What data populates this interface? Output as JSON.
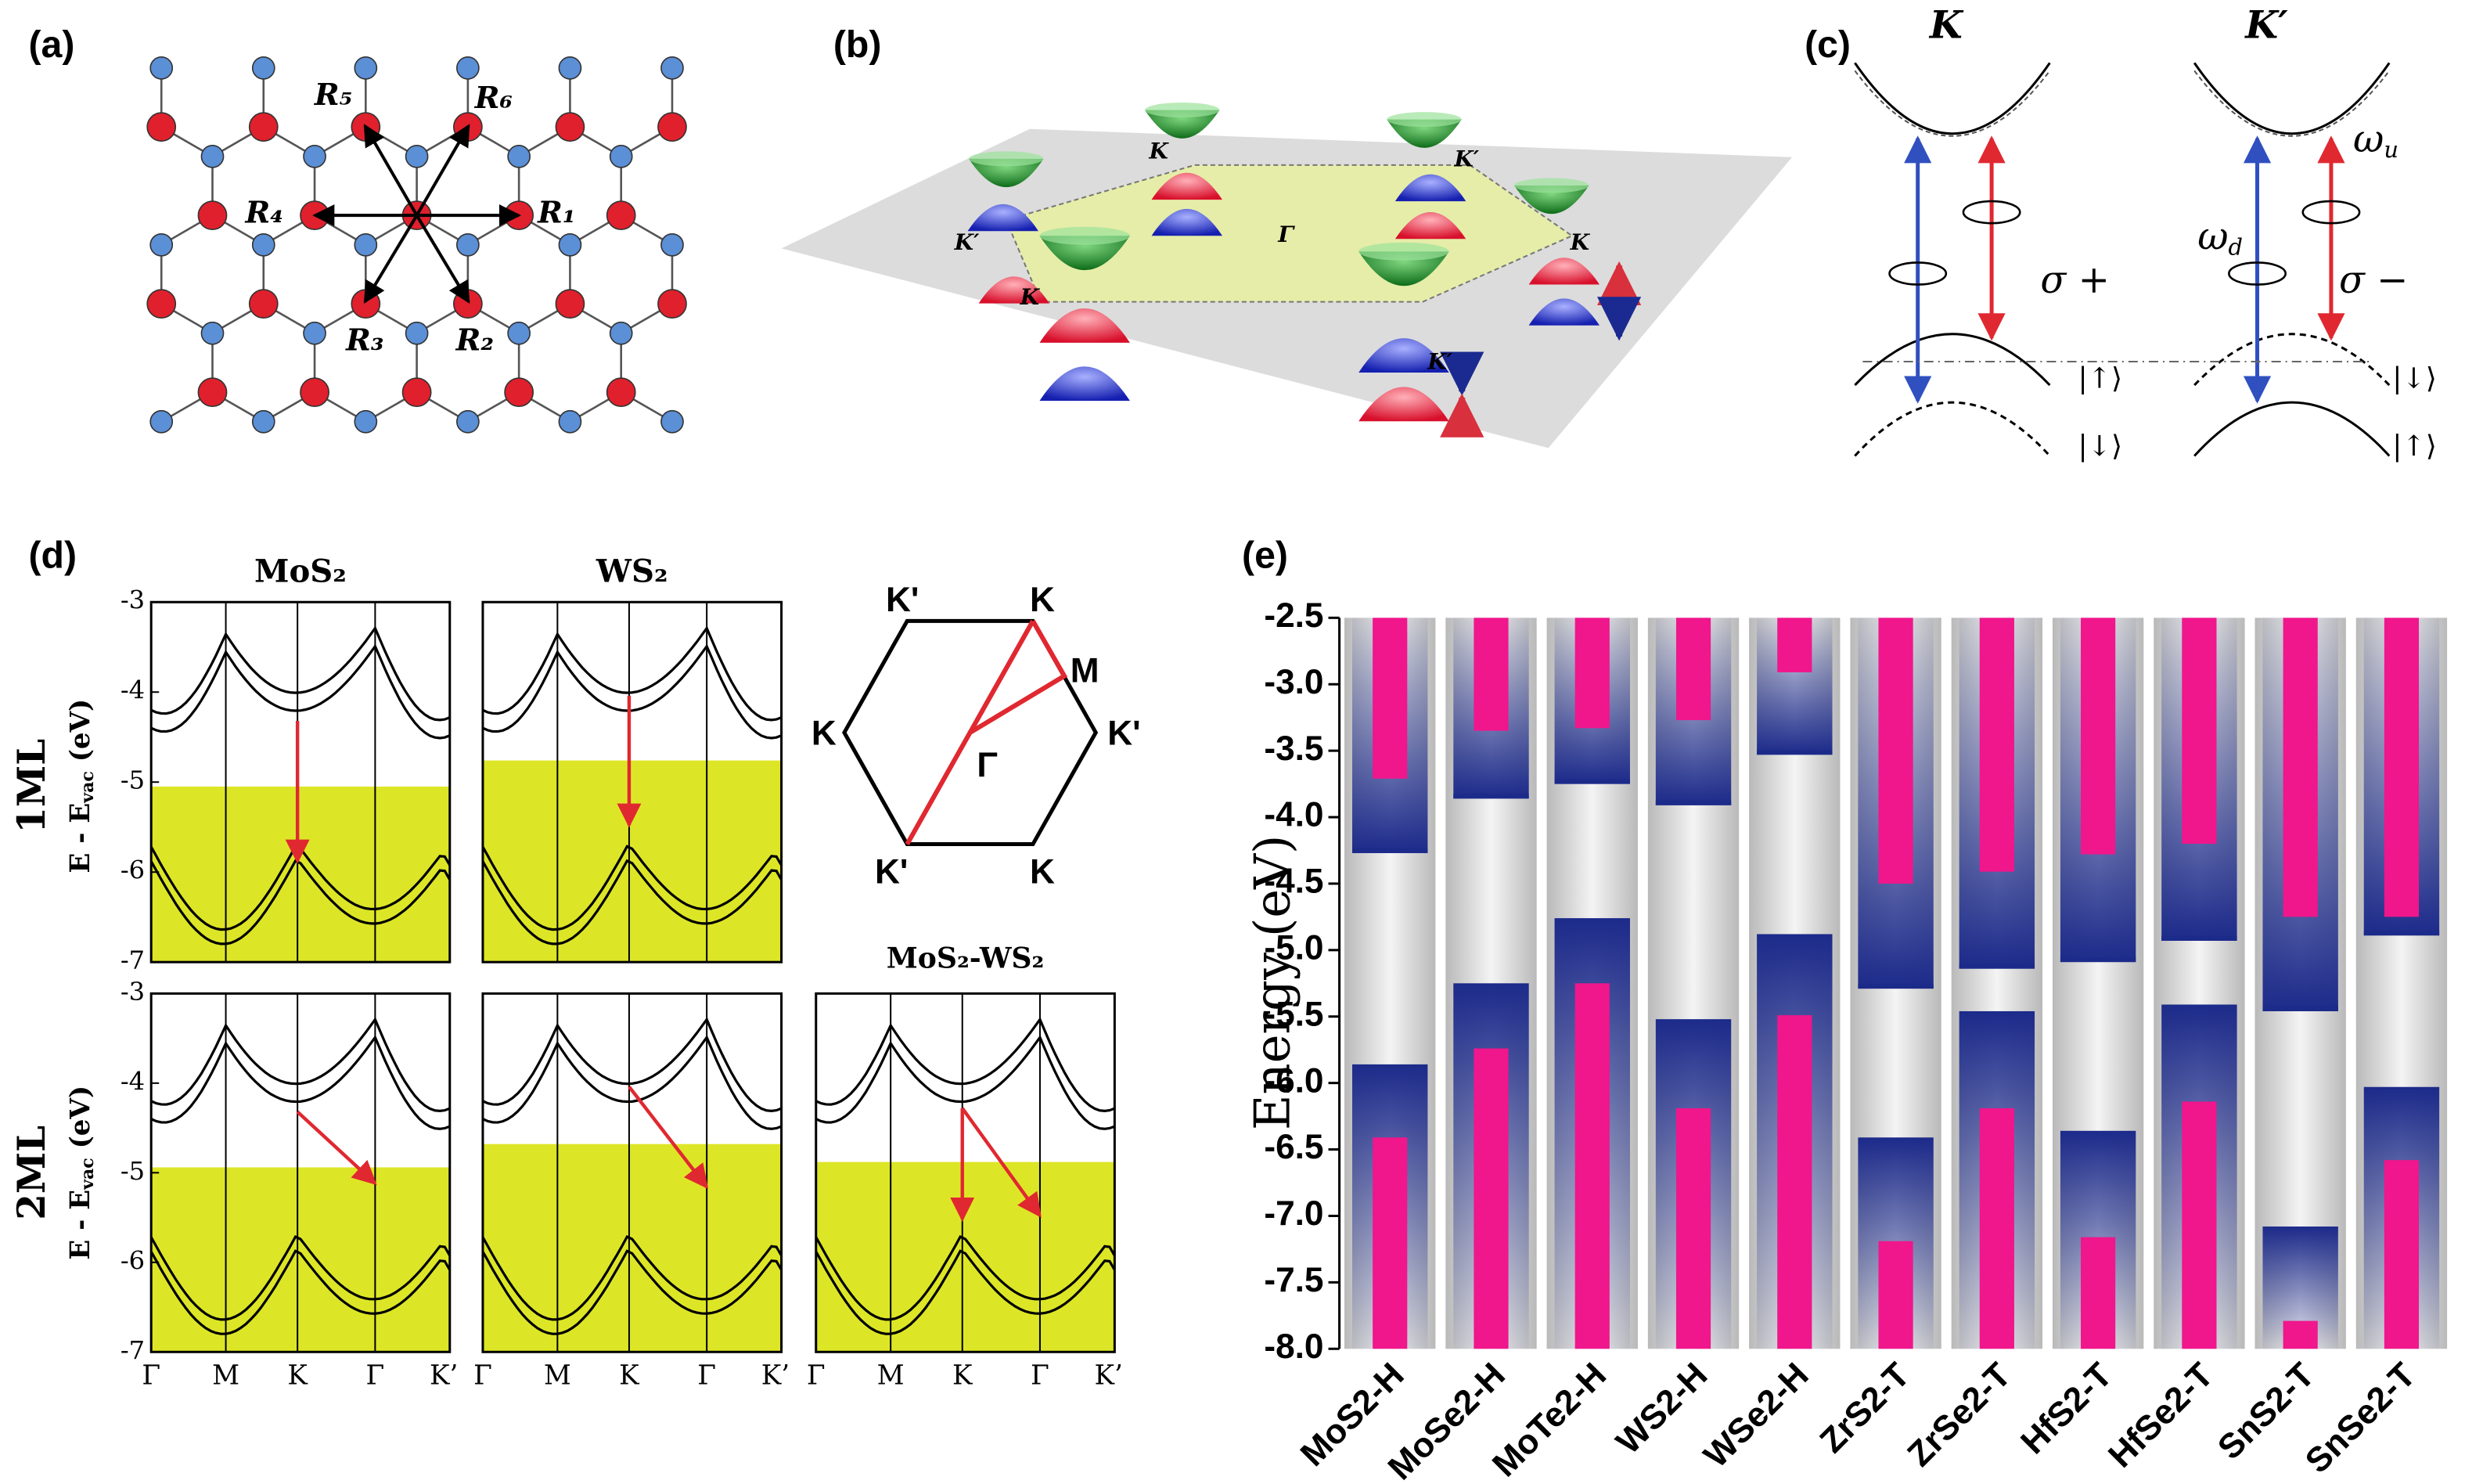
{
  "panel_labels": [
    "(a)",
    "(b)",
    "(c)",
    "(d)",
    "(e)"
  ],
  "a": {
    "labels": [
      "R₅",
      "R₆",
      "R₄",
      "R₁",
      "R₃",
      "R₂"
    ]
  },
  "b": {
    "labels": [
      "K",
      "K′",
      "K′",
      "K",
      "Γ",
      "K",
      "K′"
    ]
  },
  "c": {
    "valley_left": "K",
    "valley_right": "K′",
    "sigma_plus": "σ +",
    "sigma_minus": "σ −",
    "omega_d": {
      "symbol": "ω",
      "sub": "d"
    },
    "omega_u": {
      "symbol": "ω",
      "sub": "u"
    },
    "states_left": [
      "|↑⟩",
      "|↓⟩"
    ],
    "states_right": [
      "|↓⟩",
      "|↑⟩"
    ]
  },
  "d": {
    "columns": [
      "MoS₂",
      "WS₂"
    ],
    "hetero": "MoS₂-WS₂",
    "rows": [
      "1ML",
      "2ML"
    ],
    "ylabel": [
      "E - E",
      "vac",
      " (eV)"
    ],
    "ylim": [
      -7,
      -3
    ],
    "yticks": [
      -3,
      -4,
      -5,
      -6,
      -7
    ],
    "xticks": [
      "Γ",
      "M",
      "K",
      "Γ",
      "K’"
    ],
    "vacuum_top": [
      [
        -5.05,
        -4.76
      ],
      [
        -4.94,
        -4.68,
        -4.88
      ]
    ],
    "bz_labels": [
      "K'",
      "K",
      "M",
      "K",
      "K'",
      "Γ",
      "K'",
      "K"
    ]
  },
  "chart_data": {
    "type": "bar",
    "ylabel": "Energy (eV)",
    "categories": [
      "MoS2-H",
      "MoSe2-H",
      "MoTe2-H",
      "WS2-H",
      "WSe2-H",
      "ZrS2-T",
      "ZrSe2-T",
      "HfS2-T",
      "HfSe2-T",
      "SnS2-T",
      "SnSe2-T"
    ],
    "ylim": [
      -2.5,
      -8.0
    ],
    "yticks": [
      -2.5,
      {
        "value": -3.0,
        "label": "-3.0"
      },
      -3.5,
      {
        "value": -4.0,
        "label": "-4.0"
      },
      -4.5,
      {
        "value": -5.0,
        "label": "-5.0"
      },
      -5.5,
      {
        "value": -6.0,
        "label": "-6.0"
      },
      -6.5,
      {
        "value": -7.0,
        "label": "-7.0"
      },
      -7.5,
      {
        "value": -8.0,
        "label": "-8.0"
      }
    ],
    "series": [
      {
        "color": "#1c2a8a",
        "values": [
          -4.27,
          -3.86,
          -3.75,
          -3.91,
          -3.53,
          -5.29,
          -5.14,
          -5.09,
          -4.93,
          -5.46,
          -4.89
        ]
      },
      {
        "color": "#f0168c",
        "values": [
          -3.71,
          -3.35,
          -3.33,
          -3.27,
          -2.91,
          -4.5,
          -4.41,
          -4.28,
          -4.2,
          -4.75,
          -4.75
        ]
      },
      {
        "color": "#1c2a8a",
        "values": [
          -5.86,
          -5.25,
          -4.76,
          -5.52,
          -4.88,
          -6.41,
          -5.46,
          -6.36,
          -5.41,
          -7.08,
          -6.03
        ]
      },
      {
        "color": "#f0168c",
        "values": [
          -6.41,
          -5.74,
          -5.25,
          -6.19,
          -5.49,
          -7.19,
          -6.19,
          -7.16,
          -6.14,
          -7.79,
          -6.58
        ]
      }
    ]
  }
}
